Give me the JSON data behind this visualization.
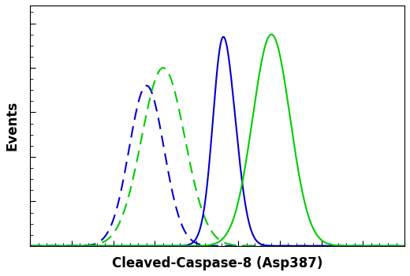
{
  "title": "",
  "xlabel": "Cleaved-Caspase-8 (Asp387)",
  "ylabel": "Events",
  "xlabel_fontsize": 12,
  "ylabel_fontsize": 12,
  "curves": [
    {
      "label": "blue_dashed",
      "color": "#0000cc",
      "linestyle": "dashed",
      "linewidth": 1.5,
      "mean": 2.8,
      "std": 0.42,
      "amplitude": 0.72
    },
    {
      "label": "green_dashed",
      "color": "#00cc00",
      "linestyle": "dashed",
      "linewidth": 1.5,
      "mean": 3.2,
      "std": 0.52,
      "amplitude": 0.8
    },
    {
      "label": "blue_solid",
      "color": "#0000cc",
      "linestyle": "solid",
      "linewidth": 1.5,
      "mean": 4.7,
      "std": 0.28,
      "amplitude": 0.78,
      "shoulder_mean": 4.55,
      "shoulder_std": 0.18,
      "shoulder_amp": 0.2
    },
    {
      "label": "green_solid",
      "color": "#00cc00",
      "linestyle": "solid",
      "linewidth": 1.5,
      "mean": 5.8,
      "std": 0.45,
      "amplitude": 0.95,
      "shoulder_mean": null,
      "shoulder_std": null,
      "shoulder_amp": null
    }
  ],
  "xlim": [
    0,
    9
  ],
  "ylim": [
    0,
    1.08
  ],
  "bg_color": "#ffffff",
  "plot_bg_color": "#ffffff",
  "tick_color": "#000000",
  "spine_color": "#000000",
  "n_xticks": 30,
  "n_yticks": 12
}
